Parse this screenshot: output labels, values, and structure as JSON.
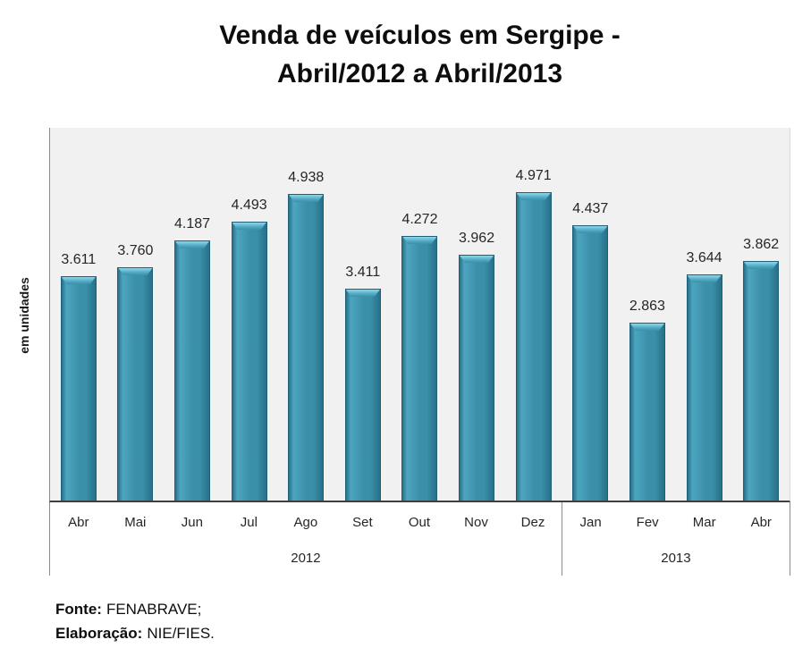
{
  "title": {
    "line1": "Venda de veículos em Sergipe -",
    "line2": "Abril/2012 a Abril/2013"
  },
  "chart_data": {
    "type": "bar",
    "title": "Venda de veículos em Sergipe - Abril/2012 a Abril/2013",
    "xlabel": "",
    "ylabel": "em unidades",
    "categories": [
      "Abr",
      "Mai",
      "Jun",
      "Jul",
      "Ago",
      "Set",
      "Out",
      "Nov",
      "Dez",
      "Jan",
      "Fev",
      "Mar",
      "Abr"
    ],
    "values": [
      3611,
      3760,
      4187,
      4493,
      4938,
      3411,
      4272,
      3962,
      4971,
      4437,
      2863,
      3644,
      3862
    ],
    "value_labels": [
      "3.611",
      "3.760",
      "4.187",
      "4.493",
      "4.938",
      "3.411",
      "4.272",
      "3.962",
      "4.971",
      "4.437",
      "2.863",
      "3.644",
      "3.862"
    ],
    "year_groups": [
      {
        "label": "2012",
        "count": 9
      },
      {
        "label": "2013",
        "count": 4
      }
    ],
    "ylim": [
      0,
      5000
    ],
    "grid": false,
    "legend": "none",
    "data_labels": true,
    "colors": {
      "bar_main": "#3b8fa9",
      "bar_highlight": "#4da5bf",
      "bar_shadow": "#27708a",
      "bar_bevel_light": "#8fd7e9",
      "bar_border": "#1f5f79",
      "plot_background": "#f1f1f1",
      "axis_line": "#404040"
    }
  },
  "footer": {
    "fonte_label": "Fonte:",
    "fonte_value": "FENABRAVE;",
    "elaboracao_label": "Elaboração:",
    "elaboracao_value": "NIE/FIES."
  }
}
